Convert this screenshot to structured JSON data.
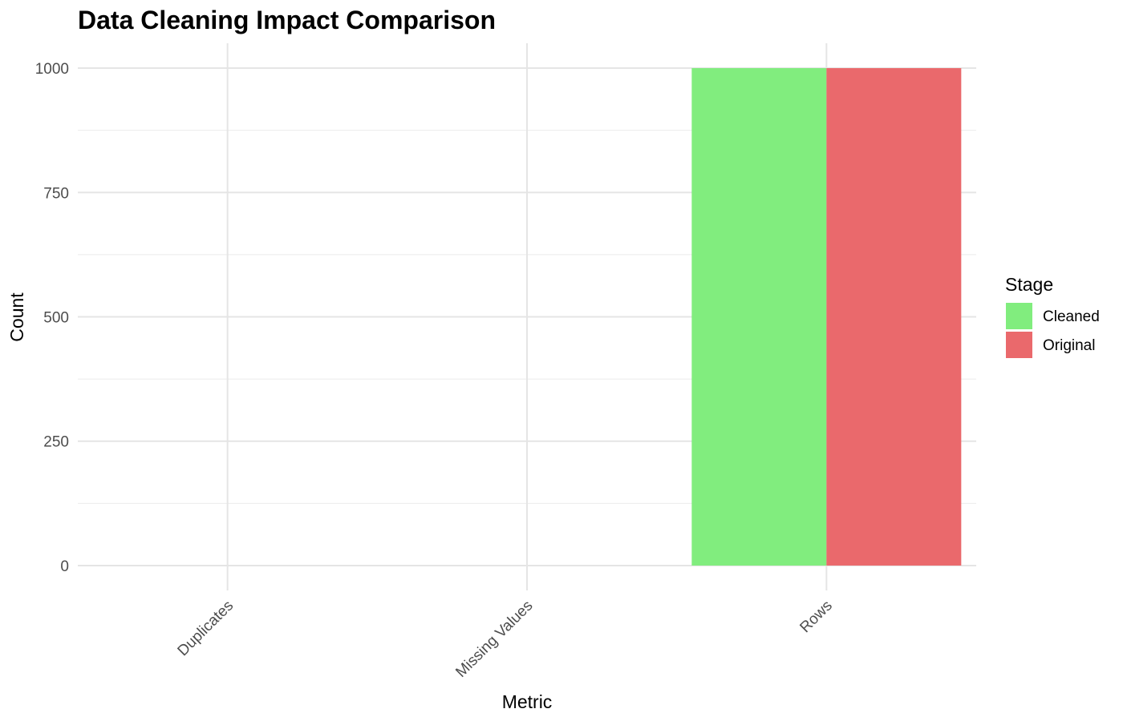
{
  "chart_data": {
    "type": "bar",
    "title": "Data Cleaning Impact Comparison",
    "xlabel": "Metric",
    "ylabel": "Count",
    "categories": [
      "Duplicates",
      "Missing Values",
      "Rows"
    ],
    "series": [
      {
        "name": "Cleaned",
        "color": "#81ED7E",
        "values": [
          0,
          0,
          1000
        ]
      },
      {
        "name": "Original",
        "color": "#EA696C",
        "values": [
          0,
          0,
          1000
        ]
      }
    ],
    "ylim": [
      -50,
      1050
    ],
    "yticks": [
      0,
      250,
      500,
      750,
      1000
    ],
    "grid": true,
    "legend": {
      "title": "Stage",
      "placement": "right"
    }
  }
}
